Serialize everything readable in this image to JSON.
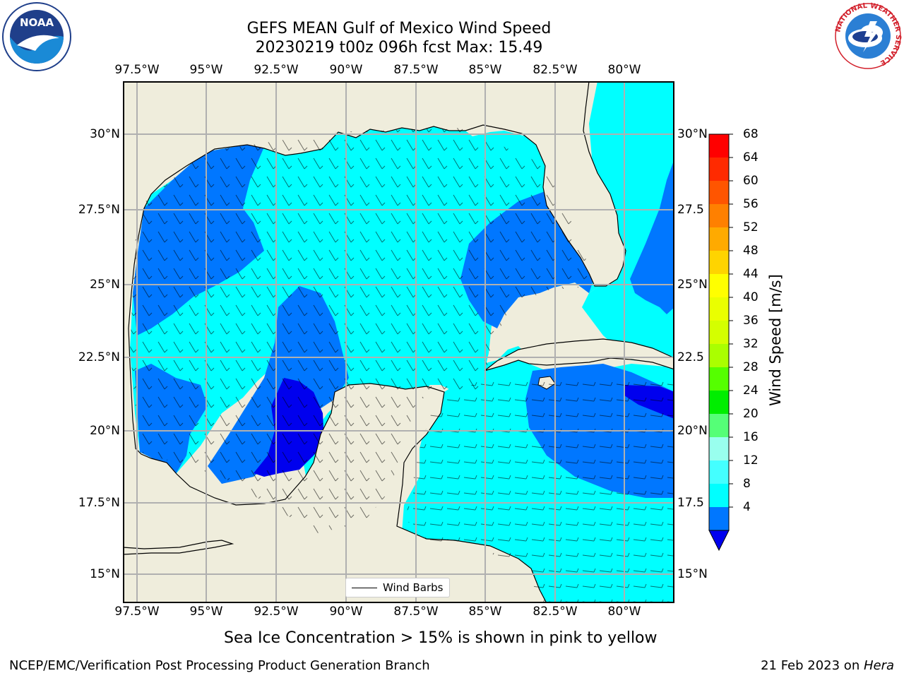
{
  "header": {
    "title_line1": "GEFS MEAN Gulf of Mexico Wind Speed",
    "title_line2": "20230219 t00z 096h fcst   Max: 15.49"
  },
  "logos": {
    "noaa_text": "NOAA",
    "nws_ring_text": "NATIONAL WEATHER SERVICE"
  },
  "map": {
    "lon_ticks": [
      "97.5°W",
      "95°W",
      "92.5°W",
      "90°W",
      "87.5°W",
      "85°W",
      "82.5°W",
      "80°W"
    ],
    "lat_ticks": [
      "30°N",
      "27.5°N",
      "25°N",
      "22.5°N",
      "20°N",
      "17.5°N",
      "15°N"
    ],
    "right_lat_ticks": [
      "30°N",
      "27.5",
      "25°N",
      "22.5",
      "20°N",
      "17.5",
      "15°N"
    ],
    "legend_label": "Wind Barbs",
    "colors": {
      "land": "#efeddc",
      "water_8_12": "#00ffff",
      "water_4_8": "#0077ff",
      "water_lt4": "#0000ee",
      "grid": "#b0b0b0"
    }
  },
  "colorbar": {
    "title": "Wind Speed [m/s]",
    "labels": [
      "68",
      "64",
      "60",
      "56",
      "52",
      "48",
      "44",
      "40",
      "36",
      "32",
      "28",
      "24",
      "20",
      "16",
      "12",
      "8",
      "4"
    ],
    "colors": [
      "#ff0000",
      "#ff2a00",
      "#ff5500",
      "#ff8000",
      "#ffaa00",
      "#ffd400",
      "#ffff00",
      "#eaff00",
      "#d4ff00",
      "#aaff00",
      "#55ff00",
      "#00ee00",
      "#55ff77",
      "#99ffee",
      "#44ffff",
      "#00ffff",
      "#0077ff"
    ],
    "under_color": "#0000ee"
  },
  "note": "Sea Ice Concentration > 15% is shown in pink to yellow",
  "footer": {
    "left": "NCEP/EMC/Verification Post Processing Product Generation Branch",
    "date": "21 Feb 2023 on ",
    "host": "Hera"
  }
}
